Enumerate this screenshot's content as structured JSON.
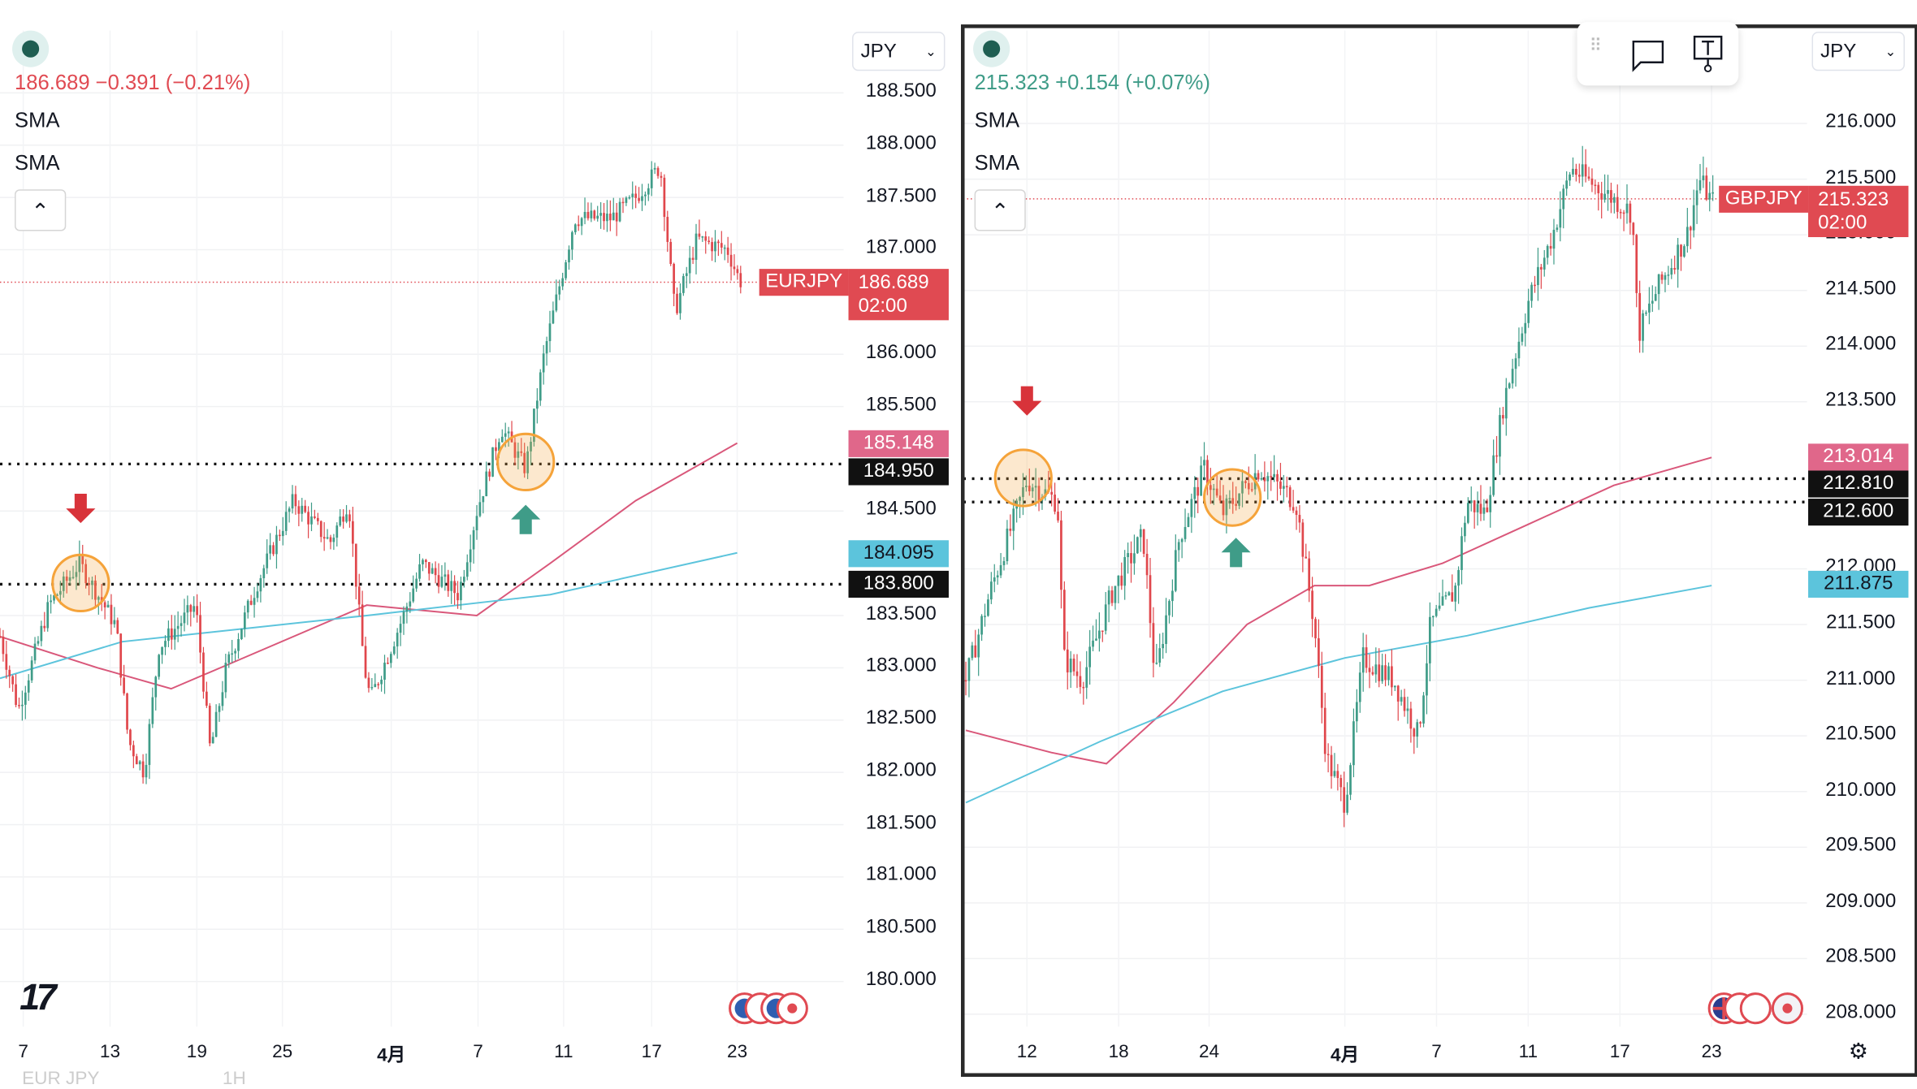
{
  "colors": {
    "up": "#3f9c88",
    "down": "#e0474c",
    "sma_slow": "#d9577a",
    "sma_fast": "#5cc4dc",
    "level": "#111111",
    "highlight": "#f5a33a",
    "arrow_down": "#d8333a",
    "arrow_up": "#3f9c88"
  },
  "left": {
    "symbol": "EURJPY",
    "quote": {
      "last": "186.689",
      "change": "−0.391",
      "change_pct": "(−0.21%)",
      "color": "#e04a52"
    },
    "indicators": [
      "SMA",
      "SMA"
    ],
    "currency": "JPY",
    "price_ticks": [
      "188.500",
      "188.000",
      "187.500",
      "187.000",
      "186.000",
      "185.500",
      "184.500",
      "183.500",
      "183.000",
      "182.500",
      "182.000",
      "181.500",
      "181.000",
      "180.500",
      "180.000"
    ],
    "time_ticks": [
      "7",
      "13",
      "19",
      "25",
      "4月",
      "7",
      "11",
      "17",
      "23"
    ],
    "last_price_badge": {
      "symbol": "EURJPY",
      "price": "186.689",
      "countdown": "02:00"
    },
    "badges": {
      "sma_slow": "185.148",
      "level_high": "184.950",
      "sma_fast": "184.095",
      "level_low": "183.800"
    },
    "levels": [
      184.95,
      183.8
    ],
    "price_path": [
      [
        0,
        183.3
      ],
      [
        15,
        182.6
      ],
      [
        40,
        183.6
      ],
      [
        65,
        184.0
      ],
      [
        95,
        183.4
      ],
      [
        105,
        182.3
      ],
      [
        118,
        182.0
      ],
      [
        130,
        183.2
      ],
      [
        160,
        183.6
      ],
      [
        172,
        182.2
      ],
      [
        185,
        183.0
      ],
      [
        210,
        183.8
      ],
      [
        240,
        184.6
      ],
      [
        270,
        184.2
      ],
      [
        285,
        184.6
      ],
      [
        298,
        183.0
      ],
      [
        303,
        182.7
      ],
      [
        330,
        183.5
      ],
      [
        345,
        184.0
      ],
      [
        375,
        183.7
      ],
      [
        390,
        184.5
      ],
      [
        410,
        185.3
      ],
      [
        430,
        184.9
      ],
      [
        445,
        186.0
      ],
      [
        470,
        187.3
      ],
      [
        500,
        187.3
      ],
      [
        520,
        187.5
      ],
      [
        540,
        187.8
      ],
      [
        552,
        186.4
      ],
      [
        570,
        187.1
      ],
      [
        595,
        187.0
      ],
      [
        605,
        186.7
      ]
    ],
    "sma_slow": [
      [
        0,
        183.3
      ],
      [
        80,
        183.0
      ],
      [
        140,
        182.8
      ],
      [
        200,
        183.1
      ],
      [
        300,
        183.6
      ],
      [
        390,
        183.5
      ],
      [
        450,
        184.0
      ],
      [
        520,
        184.6
      ],
      [
        603,
        185.15
      ]
    ],
    "sma_fast": [
      [
        0,
        182.9
      ],
      [
        100,
        183.25
      ],
      [
        300,
        183.5
      ],
      [
        450,
        183.7
      ],
      [
        603,
        184.1
      ]
    ],
    "footer_faded": [
      "EUR JPY",
      "1H"
    ]
  },
  "right": {
    "symbol": "GBPJPY",
    "quote": {
      "last": "215.323",
      "change": "+0.154",
      "change_pct": "(+0.07%)",
      "color": "#3f9c88"
    },
    "indicators": [
      "SMA",
      "SMA"
    ],
    "currency": "JPY",
    "price_ticks": [
      "216.000",
      "215.500",
      "215.000",
      "214.500",
      "214.000",
      "213.500",
      "212.000",
      "211.500",
      "211.000",
      "210.500",
      "210.000",
      "209.500",
      "209.000",
      "208.500",
      "208.000"
    ],
    "time_ticks": [
      "12",
      "18",
      "24",
      "4月",
      "7",
      "11",
      "17",
      "23"
    ],
    "last_price_badge": {
      "symbol": "GBPJPY",
      "price": "215.323",
      "countdown": "02:00"
    },
    "badges": {
      "sma_slow": "213.014",
      "level_high": "212.810",
      "level_low": "212.600",
      "sma_fast": "211.875"
    },
    "levels": [
      212.81,
      212.6
    ],
    "price_path": [
      [
        790,
        211.0
      ],
      [
        810,
        211.8
      ],
      [
        840,
        212.8
      ],
      [
        865,
        212.6
      ],
      [
        870,
        211.2
      ],
      [
        885,
        211.0
      ],
      [
        910,
        211.8
      ],
      [
        935,
        212.3
      ],
      [
        945,
        211.0
      ],
      [
        965,
        212.3
      ],
      [
        985,
        212.9
      ],
      [
        1000,
        212.5
      ],
      [
        1030,
        212.9
      ],
      [
        1060,
        212.6
      ],
      [
        1075,
        211.5
      ],
      [
        1085,
        210.3
      ],
      [
        1100,
        209.9
      ],
      [
        1115,
        211.2
      ],
      [
        1140,
        211.0
      ],
      [
        1160,
        210.5
      ],
      [
        1170,
        211.5
      ],
      [
        1190,
        211.8
      ],
      [
        1200,
        212.6
      ],
      [
        1215,
        212.5
      ],
      [
        1230,
        213.5
      ],
      [
        1250,
        214.4
      ],
      [
        1270,
        215.0
      ],
      [
        1285,
        215.6
      ],
      [
        1310,
        215.4
      ],
      [
        1335,
        215.2
      ],
      [
        1340,
        214.1
      ],
      [
        1355,
        214.5
      ],
      [
        1380,
        215.0
      ],
      [
        1390,
        215.5
      ],
      [
        1400,
        215.3
      ]
    ],
    "sma_slow": [
      [
        790,
        210.55
      ],
      [
        860,
        210.35
      ],
      [
        905,
        210.25
      ],
      [
        960,
        210.8
      ],
      [
        1020,
        211.5
      ],
      [
        1075,
        211.85
      ],
      [
        1120,
        211.85
      ],
      [
        1180,
        212.05
      ],
      [
        1250,
        212.4
      ],
      [
        1320,
        212.75
      ],
      [
        1400,
        213.0
      ]
    ],
    "sma_fast": [
      [
        790,
        209.9
      ],
      [
        900,
        210.45
      ],
      [
        1000,
        210.9
      ],
      [
        1100,
        211.2
      ],
      [
        1200,
        211.4
      ],
      [
        1300,
        211.65
      ],
      [
        1400,
        211.85
      ]
    ]
  }
}
